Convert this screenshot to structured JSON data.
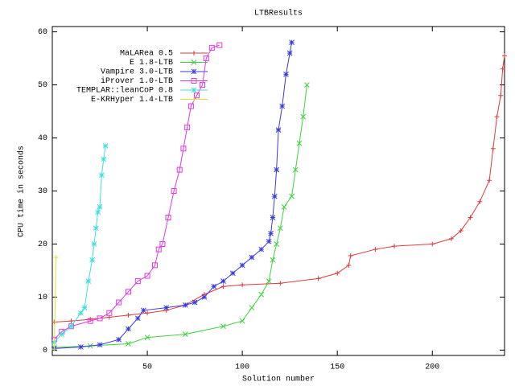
{
  "chart_data": {
    "type": "line",
    "title": "LTBResults",
    "x_label": "Solution number",
    "y_label": "CPU time in seconds",
    "xlim": [
      0,
      238
    ],
    "ylim": [
      -1,
      61
    ],
    "xticks": [
      50,
      100,
      150,
      200
    ],
    "yticks": [
      0,
      10,
      20,
      30,
      40,
      50,
      60
    ],
    "legend": "top-left",
    "series": [
      {
        "name": "MaLARea 0.5",
        "color": "#e03a3a",
        "marker": "plus",
        "x": [
          1,
          10,
          20,
          30,
          40,
          50,
          60,
          70,
          80,
          90,
          100,
          120,
          140,
          150,
          156,
          157,
          170,
          180,
          200,
          210,
          215,
          220,
          225,
          230,
          232,
          234,
          236,
          237,
          238
        ],
        "values": [
          5.3,
          5.5,
          5.8,
          6.2,
          6.6,
          7,
          7.5,
          8.5,
          10.5,
          12,
          12.3,
          12.6,
          13.5,
          14.5,
          16,
          17.8,
          19,
          19.6,
          20,
          21,
          22.5,
          25,
          28,
          32,
          38,
          44,
          48,
          53,
          55.5
        ]
      },
      {
        "name": "E 1.8-LTB",
        "color": "#3ed13e",
        "marker": "cross",
        "x": [
          1,
          20,
          40,
          50,
          70,
          90,
          100,
          105,
          110,
          114,
          116,
          118,
          120,
          122,
          126,
          128,
          130,
          132,
          134
        ],
        "values": [
          0.5,
          0.8,
          1.2,
          2.4,
          3,
          4.5,
          5.5,
          8,
          10.5,
          13,
          17,
          20,
          23,
          27,
          29,
          34,
          39,
          44,
          50
        ]
      },
      {
        "name": "Vampire 3.0-LTB",
        "color": "#3a3ae0",
        "marker": "star",
        "x": [
          1,
          15,
          25,
          35,
          40,
          45,
          48,
          60,
          70,
          75,
          80,
          85,
          90,
          95,
          100,
          105,
          110,
          114,
          115,
          116,
          117,
          118,
          119,
          121,
          123,
          125,
          126
        ],
        "values": [
          0.3,
          0.6,
          1,
          2,
          4,
          6,
          7.5,
          8,
          8.5,
          9,
          10,
          12,
          13,
          14.5,
          16,
          17.5,
          19,
          20.5,
          22,
          25,
          29,
          34,
          41.5,
          46,
          52,
          56,
          58
        ]
      },
      {
        "name": "iProver 1.0-LTB",
        "color": "#e03ae0",
        "marker": "square",
        "x": [
          1,
          5,
          10,
          20,
          25,
          30,
          35,
          40,
          45,
          50,
          54,
          56,
          58,
          61,
          64,
          67,
          69,
          71,
          73,
          76,
          79,
          81,
          84,
          88
        ],
        "values": [
          2,
          3.5,
          4.5,
          5.5,
          6,
          7,
          9,
          11,
          13,
          14,
          16,
          19,
          20,
          25,
          30,
          34,
          38,
          42,
          46,
          48,
          50,
          55,
          57,
          57.5
        ]
      },
      {
        "name": "TEMPLAR::leanCoP 0.8",
        "color": "#3ee0e0",
        "marker": "star",
        "x": [
          1,
          5,
          10,
          15,
          17,
          19,
          21,
          22,
          23,
          24,
          25,
          26,
          27,
          28
        ],
        "values": [
          1.5,
          3,
          4.5,
          7,
          8,
          13,
          17,
          20,
          23,
          26,
          27,
          33,
          36,
          38.5
        ]
      },
      {
        "name": "E-KRHyper 1.4-LTB",
        "color": "#e0e03a",
        "marker": "plus",
        "x": [
          1,
          2
        ],
        "values": [
          0.2,
          17.5
        ]
      }
    ]
  }
}
